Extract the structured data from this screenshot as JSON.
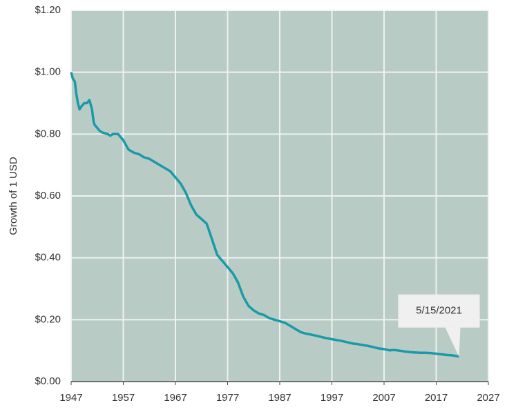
{
  "chart_data": {
    "type": "line",
    "ylabel": "Growth of 1 USD",
    "annotation": "5/15/2021",
    "color": "#1a9aa8",
    "grid": true,
    "x": [
      1947.0,
      1947.3,
      1947.7,
      1948.0,
      1948.3,
      1948.6,
      1949.0,
      1949.5,
      1950.0,
      1950.5,
      1951.0,
      1951.3,
      1951.5,
      1952.0,
      1952.5,
      1953,
      1954,
      1954.5,
      1955,
      1956,
      1957,
      1958,
      1959,
      1960,
      1961,
      1962,
      1963,
      1964,
      1965,
      1966,
      1967,
      1968,
      1969,
      1970,
      1971,
      1972,
      1973,
      1974,
      1975,
      1976,
      1977,
      1978,
      1979,
      1980,
      1981,
      1982,
      1983,
      1984,
      1985,
      1986,
      1987,
      1988,
      1989,
      1990,
      1991,
      1992,
      1993,
      1994,
      1995,
      1996,
      1997,
      1998,
      1999,
      2000,
      2001,
      2002,
      2003,
      2004,
      2005,
      2006,
      2007,
      2008,
      2009,
      2010,
      2011,
      2012,
      2013,
      2014,
      2015,
      2016,
      2017,
      2018,
      2019,
      2020,
      2021.37
    ],
    "values": [
      1.0,
      0.98,
      0.97,
      0.93,
      0.9,
      0.88,
      0.89,
      0.9,
      0.9,
      0.91,
      0.88,
      0.84,
      0.83,
      0.82,
      0.81,
      0.805,
      0.8,
      0.795,
      0.8,
      0.8,
      0.78,
      0.75,
      0.74,
      0.735,
      0.725,
      0.72,
      0.71,
      0.7,
      0.69,
      0.68,
      0.66,
      0.64,
      0.61,
      0.57,
      0.54,
      0.525,
      0.51,
      0.46,
      0.41,
      0.39,
      0.37,
      0.35,
      0.32,
      0.275,
      0.245,
      0.23,
      0.22,
      0.215,
      0.205,
      0.2,
      0.195,
      0.19,
      0.18,
      0.17,
      0.16,
      0.155,
      0.152,
      0.148,
      0.144,
      0.14,
      0.137,
      0.134,
      0.131,
      0.127,
      0.123,
      0.121,
      0.118,
      0.115,
      0.111,
      0.107,
      0.105,
      0.101,
      0.102,
      0.1,
      0.097,
      0.095,
      0.094,
      0.093,
      0.093,
      0.092,
      0.09,
      0.088,
      0.086,
      0.085,
      0.081
    ],
    "xlim": [
      1947,
      2027
    ],
    "xticks": [
      1947,
      1957,
      1967,
      1977,
      1987,
      1997,
      2007,
      2017,
      2027
    ],
    "ylim": [
      0,
      1.2
    ],
    "yticks": [
      {
        "value": 0,
        "label": "$0.00"
      },
      {
        "value": 0.2,
        "label": "$0.20"
      },
      {
        "value": 0.4,
        "label": "$0.40"
      },
      {
        "value": 0.6,
        "label": "$0.60"
      },
      {
        "value": 0.8,
        "label": "$0.80"
      },
      {
        "value": 1.0,
        "label": "$1.00"
      },
      {
        "value": 1.2,
        "label": "$1.20"
      }
    ]
  }
}
